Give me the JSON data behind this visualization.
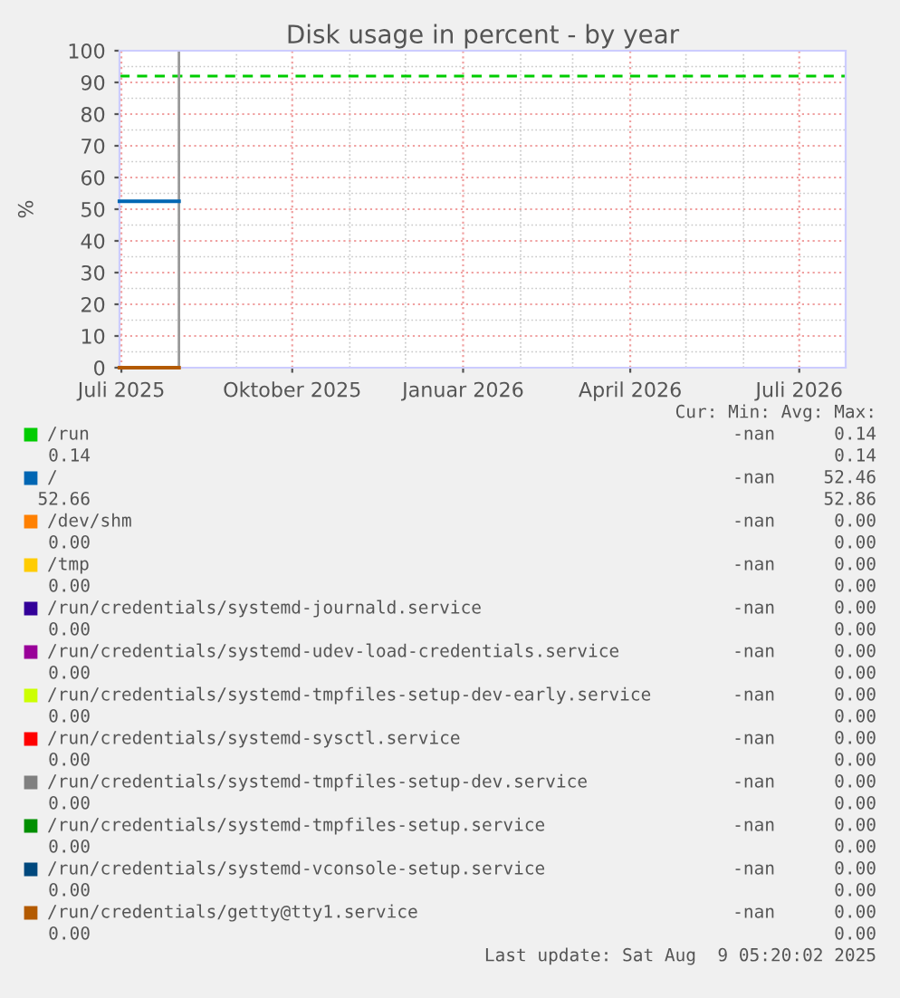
{
  "chart_data": {
    "type": "line",
    "title": "Disk usage in percent - by year",
    "ylabel": "%",
    "xlim": [
      "2025-06-30",
      "2026-07-26"
    ],
    "xticks": [
      {
        "value": "2025-07-01",
        "label": "Juli 2025"
      },
      {
        "value": "2025-10-01",
        "label": "Oktober 2025"
      },
      {
        "value": "2026-01-01",
        "label": "Januar 2026"
      },
      {
        "value": "2026-04-01",
        "label": "April 2026"
      },
      {
        "value": "2026-07-01",
        "label": "Juli 2026"
      }
    ],
    "ylim": [
      0,
      100
    ],
    "yticks": [
      0,
      10,
      20,
      30,
      40,
      50,
      60,
      70,
      80,
      90,
      100
    ],
    "grid": true,
    "legend": "bottom",
    "line_style": "solid",
    "marker": "none",
    "x": [
      "2025-06-30",
      "2025-08-01"
    ],
    "series": [
      {
        "name": "/run",
        "color": "#00cc00",
        "values": [
          null,
          null
        ]
      },
      {
        "name": "/",
        "color": "#0066b3",
        "values": [
          52.5,
          52.5
        ]
      },
      {
        "name": "/dev/shm",
        "color": "#ff8000",
        "values": [
          null,
          null
        ]
      },
      {
        "name": "/tmp",
        "color": "#ffcc00",
        "values": [
          null,
          null
        ]
      },
      {
        "name": "/run/credentials/systemd-journald.service",
        "color": "#330099",
        "values": [
          null,
          null
        ]
      },
      {
        "name": "/run/credentials/systemd-udev-load-credentials.service",
        "color": "#990099",
        "values": [
          null,
          null
        ]
      },
      {
        "name": "/run/credentials/systemd-tmpfiles-setup-dev-early.service",
        "color": "#ccff00",
        "values": [
          null,
          null
        ]
      },
      {
        "name": "/run/credentials/systemd-sysctl.service",
        "color": "#ff0000",
        "values": [
          null,
          null
        ]
      },
      {
        "name": "/run/credentials/systemd-tmpfiles-setup-dev.service",
        "color": "#808080",
        "values": [
          null,
          null
        ]
      },
      {
        "name": "/run/credentials/systemd-tmpfiles-setup.service",
        "color": "#008f00",
        "values": [
          null,
          null
        ]
      },
      {
        "name": "/run/credentials/systemd-vconsole-setup.service",
        "color": "#00487d",
        "values": [
          null,
          null
        ]
      },
      {
        "name": "/run/credentials/getty@tty1.service",
        "color": "#b35a00",
        "values": [
          0,
          0
        ]
      }
    ],
    "ref_lines": [
      {
        "axis": "y",
        "value": 92,
        "color": "#00cc00",
        "line_style": "dashed"
      },
      {
        "axis": "x",
        "value": "2025-08-01",
        "color": "#999999",
        "line_style": "solid"
      }
    ],
    "annotations": [
      "Cur: Min: Avg: Max:",
      "-nan",
      "0.14",
      "0.14",
      "0.14",
      "-nan",
      "52.46",
      "52.66",
      "52.86",
      "-nan",
      "0.00",
      "0.00",
      "0.00",
      "-nan",
      "0.00",
      "0.00",
      "0.00",
      "-nan",
      "0.00",
      "0.00",
      "0.00",
      "-nan",
      "0.00",
      "0.00",
      "0.00",
      "-nan",
      "0.00",
      "0.00",
      "0.00",
      "-nan",
      "0.00",
      "0.00",
      "0.00",
      "-nan",
      "0.00",
      "0.00",
      "0.00",
      "-nan",
      "0.00",
      "0.00",
      "0.00",
      "-nan",
      "0.00",
      "0.00",
      "0.00",
      "-nan",
      "0.00",
      "0.00",
      "0.00",
      "Last update: Sat Aug  9 05:20:02 2025"
    ]
  }
}
